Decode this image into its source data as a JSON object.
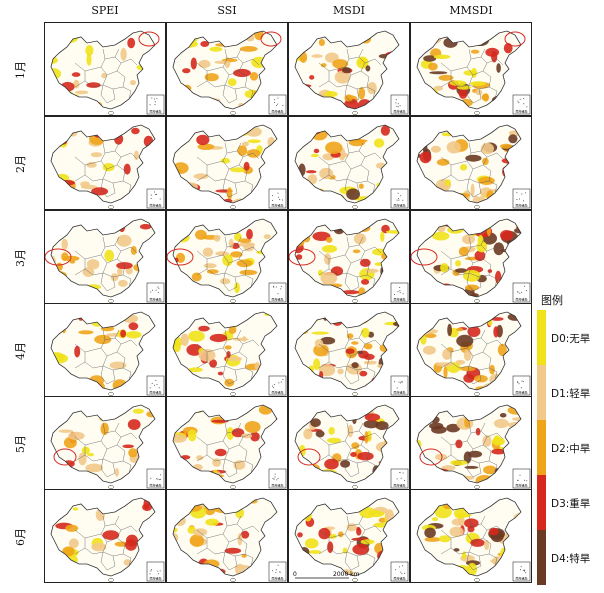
{
  "columns": [
    "SPEI",
    "SSI",
    "MSDI",
    "MMSDI"
  ],
  "rows": [
    "1月",
    "2月",
    "3月",
    "4月",
    "5月",
    "6月"
  ],
  "legend": {
    "title": "图例",
    "items": [
      {
        "label": "D0:无旱",
        "color": "#f1e21a"
      },
      {
        "label": "D1:轻旱",
        "color": "#f2c98a"
      },
      {
        "label": "D2:中旱",
        "color": "#f0a419"
      },
      {
        "label": "D3:重旱",
        "color": "#d6281d"
      },
      {
        "label": "D4:特旱",
        "color": "#6b3a24"
      }
    ]
  },
  "inset_label": "南海诸岛",
  "scale_bar": {
    "zero": "0",
    "distance": "2000 km"
  },
  "highlights": [
    {
      "row": 0,
      "col": 1
    },
    {
      "row": 0,
      "col": 3
    },
    {
      "row": 0,
      "col": 0
    },
    {
      "row": 2,
      "col": 0
    },
    {
      "row": 2,
      "col": 1
    },
    {
      "row": 2,
      "col": 2
    },
    {
      "row": 2,
      "col": 3
    },
    {
      "row": 4,
      "col": 0
    },
    {
      "row": 4,
      "col": 2
    },
    {
      "row": 4,
      "col": 3
    }
  ],
  "highlight_color": "#d62a22",
  "colors": {
    "land": "#fffdf2",
    "border": "#555555",
    "frame": "#222222"
  }
}
